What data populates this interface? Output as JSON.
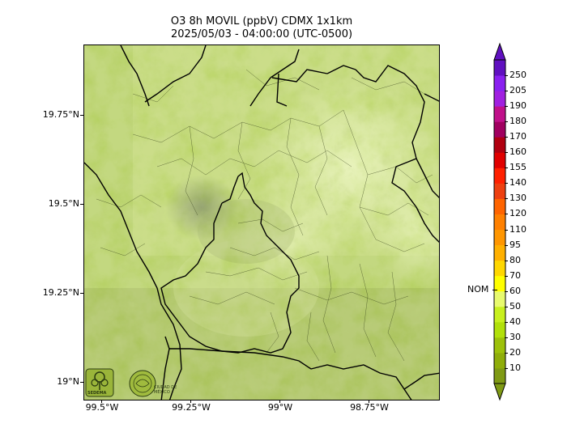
{
  "title": {
    "line1": "O3 8h MOVIL (ppbV) CDMX 1x1km",
    "line2": "2025/05/03 - 04:00:00 (UTC-0500)"
  },
  "axes": {
    "y_ticks": [
      {
        "label": "19.75°N",
        "lat": 19.75
      },
      {
        "label": "19.5°N",
        "lat": 19.5
      },
      {
        "label": "19.25°N",
        "lat": 19.25
      },
      {
        "label": "19°N",
        "lat": 19.0
      }
    ],
    "x_ticks": [
      {
        "label": "99.5°W",
        "lon": -99.5
      },
      {
        "label": "99.25°W",
        "lon": -99.25
      },
      {
        "label": "99°W",
        "lon": -99.0
      },
      {
        "label": "98.75°W",
        "lon": -98.75
      }
    ],
    "lat_range": [
      18.95,
      19.95
    ],
    "lon_range": [
      -99.55,
      -98.55
    ]
  },
  "colorbar": {
    "levels": [
      "10",
      "20",
      "30",
      "40",
      "50",
      "60",
      "70",
      "80",
      "95",
      "110",
      "120",
      "130",
      "140",
      "155",
      "160",
      "170",
      "180",
      "190",
      "205",
      "250"
    ],
    "colors": [
      "#7f9a14",
      "#8fad0a",
      "#9dc10a",
      "#b1e00a",
      "#c8f01e",
      "#e8fa6e",
      "#ffff00",
      "#ffd700",
      "#ffb000",
      "#ff9600",
      "#ff8000",
      "#ff6400",
      "#ee4010",
      "#ff2000",
      "#e00000",
      "#b00010",
      "#a00060",
      "#c0108a",
      "#a020e0",
      "#8a20f0",
      "#6010c0"
    ],
    "nom_label": "NOM",
    "nom_value": 65
  },
  "logos": {
    "left_icon": "sedema-tree-icon",
    "left_text": "SEDEMA",
    "right_icon": "cdmx-seal-icon",
    "right_text": "CIUDAD DE MÉXICO"
  }
}
